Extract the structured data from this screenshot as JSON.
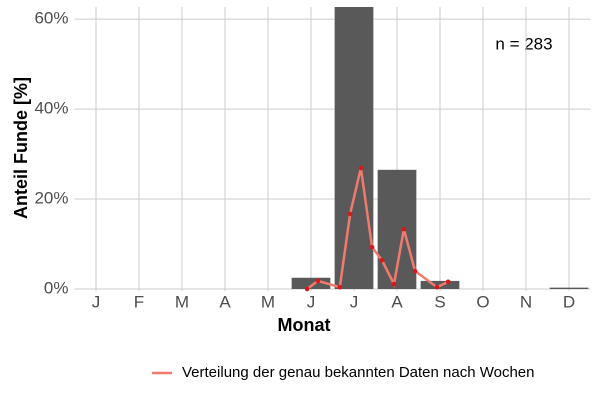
{
  "chart_data": {
    "type": "bar",
    "x_label": "Monat",
    "y_label": "Anteil Funde [%]",
    "annotation": "n = 283",
    "categories": [
      "J",
      "F",
      "M",
      "A",
      "M",
      "J",
      "J",
      "A",
      "S",
      "O",
      "N",
      "D"
    ],
    "values": [
      0,
      0,
      0,
      0,
      0,
      2.5,
      62.7,
      26.5,
      1.8,
      0,
      0,
      0.3
    ],
    "color": "#595959",
    "ylim": [
      0,
      62.7
    ],
    "yticks": [
      {
        "value": 0,
        "label": "0%"
      },
      {
        "value": 20,
        "label": "20%"
      },
      {
        "value": 40,
        "label": "40%"
      },
      {
        "value": 60,
        "label": "60%"
      }
    ],
    "grid": true,
    "line": {
      "name": "Verteilung der genau bekannten Daten nach Wochen",
      "color": "#f07a6e",
      "point_color": "#d7191c",
      "x": [
        5.91,
        6.16,
        6.67,
        6.91,
        7.16,
        7.42,
        7.65,
        7.93,
        8.16,
        8.42,
        8.93,
        9.19
      ],
      "values": [
        0,
        1.8,
        0.4,
        16.7,
        26.9,
        9.3,
        6.4,
        1.1,
        13.3,
        4,
        0.4,
        1.6
      ]
    },
    "legend": "bottom"
  }
}
